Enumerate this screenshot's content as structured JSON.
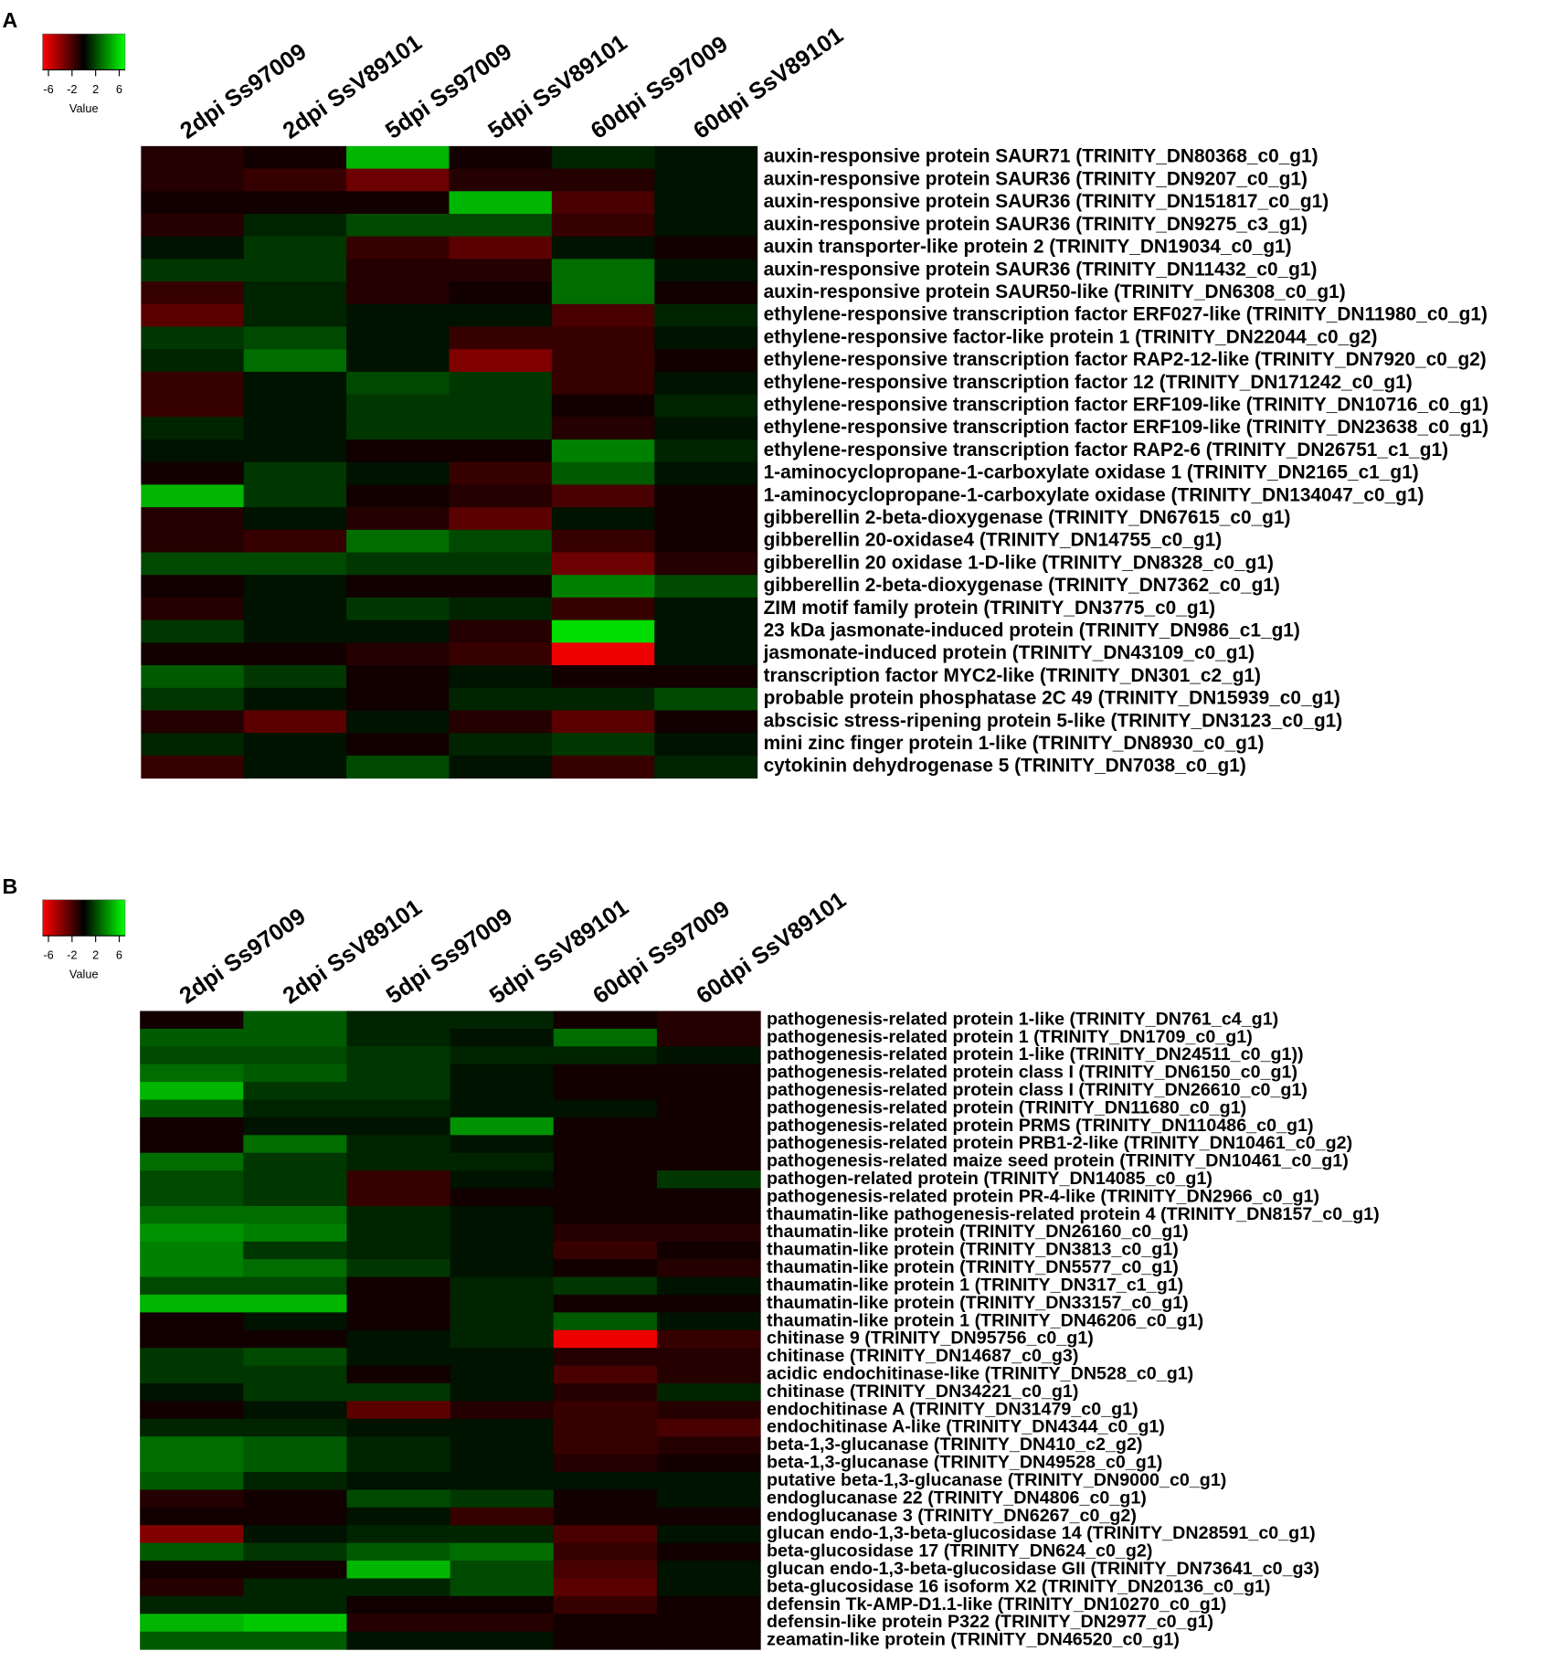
{
  "chart_data": [
    {
      "type": "heatmap",
      "panel_label": "A",
      "colorbar_label": "Value",
      "clim": [
        -7,
        7
      ],
      "cticks": [
        -6,
        -2,
        2,
        6
      ],
      "colors": {
        "low": "#ff0000",
        "mid": "#000000",
        "high": "#00ff00"
      },
      "columns": [
        "2dpi Ss97009",
        "2dpi SsV89101",
        "5dpi Ss97009",
        "5dpi SsV89101",
        "60dpi Ss97009",
        "60dpi SsV89101"
      ],
      "rows": [
        "auxin-responsive protein SAUR71 (TRINITY_DN80368_c0_g1)",
        "auxin-responsive protein SAUR36 (TRINITY_DN9207_c0_g1)",
        "auxin-responsive protein SAUR36 (TRINITY_DN151817_c0_g1)",
        "auxin-responsive protein SAUR36 (TRINITY_DN9275_c3_g1)",
        "auxin transporter-like protein 2 (TRINITY_DN19034_c0_g1)",
        "auxin-responsive protein SAUR36 (TRINITY_DN11432_c0_g1)",
        "auxin-responsive protein SAUR50-like (TRINITY_DN6308_c0_g1)",
        "ethylene-responsive transcription factor ERF027-like (TRINITY_DN11980_c0_g1)",
        "ethylene-responsive factor-like protein 1 (TRINITY_DN22044_c0_g2)",
        "ethylene-responsive transcription factor RAP2-12-like (TRINITY_DN7920_c0_g2)",
        "ethylene-responsive transcription factor 12 (TRINITY_DN171242_c0_g1)",
        "ethylene-responsive transcription factor ERF109-like (TRINITY_DN10716_c0_g1)",
        "ethylene-responsive transcription factor ERF109-like (TRINITY_DN23638_c0_g1)",
        "ethylene-responsive transcription factor RAP2-6 (TRINITY_DN26751_c1_g1)",
        "1-aminocyclopropane-1-carboxylate oxidase 1 (TRINITY_DN2165_c1_g1)",
        "1-aminocyclopropane-1-carboxylate oxidase (TRINITY_DN134047_c0_g1)",
        "gibberellin 2-beta-dioxygenase (TRINITY_DN67615_c0_g1)",
        "gibberellin 20-oxidase4 (TRINITY_DN14755_c0_g1)",
        "gibberellin 20 oxidase 1-D-like (TRINITY_DN8328_c0_g1)",
        "gibberellin 2-beta-dioxygenase (TRINITY_DN7362_c0_g1)",
        "ZIM motif family protein (TRINITY_DN3775_c0_g1)",
        "23 kDa jasmonate-induced protein (TRINITY_DN986_c1_g1)",
        "jasmonate-induced protein (TRINITY_DN43109_c0_g1)",
        "transcription factor MYC2-like (TRINITY_DN301_c2_g1)",
        "probable protein phosphatase 2C 49 (TRINITY_DN15939_c0_g1)",
        "abscisic stress-ripening protein 5-like (TRINITY_DN3123_c0_g1)",
        "mini zinc finger protein 1-like (TRINITY_DN8930_c0_g1)",
        "cytokinin dehydrogenase 5 (TRINITY_DN7038_c0_g1)"
      ],
      "values": [
        [
          -1,
          -0.5,
          5,
          -0.5,
          1,
          0.5
        ],
        [
          -1,
          -1.5,
          -3,
          -1,
          -1,
          0.5
        ],
        [
          -0.5,
          -0.5,
          -0.5,
          5,
          -2,
          0.5
        ],
        [
          -1,
          1,
          2,
          2,
          -1.5,
          0.5
        ],
        [
          0.5,
          1.5,
          -1.5,
          -2.5,
          0.5,
          -0.5
        ],
        [
          1.5,
          1.5,
          -1,
          -1,
          3,
          0.5
        ],
        [
          -1.5,
          1,
          -1,
          -0.5,
          3,
          -0.5
        ],
        [
          -2.5,
          1,
          0.5,
          0.5,
          -2,
          1
        ],
        [
          1.5,
          2,
          0.5,
          -1.5,
          -1.5,
          0.5
        ],
        [
          1,
          3,
          0.5,
          -3.5,
          -1.5,
          -0.5
        ],
        [
          -1.5,
          0.5,
          2,
          1.5,
          -1.5,
          0.5
        ],
        [
          -1.5,
          0.5,
          1.5,
          1.5,
          -0.5,
          1
        ],
        [
          1,
          0.5,
          1.5,
          1.5,
          -1,
          0.5
        ],
        [
          0.5,
          0.5,
          -0.5,
          -0.5,
          3.5,
          1
        ],
        [
          -0.5,
          1.5,
          0.5,
          -1.5,
          2.5,
          0.5
        ],
        [
          5,
          1.5,
          -0.5,
          -1,
          -2,
          -0.5
        ],
        [
          -1,
          0.5,
          -1,
          -2.5,
          0.5,
          -0.5
        ],
        [
          -1,
          -1.5,
          3,
          2,
          -1.5,
          -0.5
        ],
        [
          2,
          2,
          1.5,
          1.5,
          -3,
          -1
        ],
        [
          -0.5,
          0.5,
          -0.5,
          -0.5,
          3.5,
          2
        ],
        [
          -1,
          0.5,
          1.5,
          1,
          -1.5,
          0.5
        ],
        [
          1.5,
          0.5,
          0.5,
          -1,
          6,
          0.5
        ],
        [
          -0.5,
          -0.5,
          -1,
          -1.5,
          -6.5,
          0.5
        ],
        [
          2.5,
          1.5,
          -0.5,
          0.5,
          -0.5,
          -0.5
        ],
        [
          1.5,
          0.5,
          -0.5,
          1,
          1,
          2
        ],
        [
          -1,
          -2.5,
          0.5,
          -1,
          -2.5,
          -0.5
        ],
        [
          1,
          0.5,
          -0.5,
          1,
          1.5,
          0.5
        ],
        [
          -1.5,
          0.5,
          2,
          0.5,
          -1.5,
          1
        ]
      ]
    },
    {
      "type": "heatmap",
      "panel_label": "B",
      "colorbar_label": "Value",
      "clim": [
        -7,
        7
      ],
      "cticks": [
        -6,
        -2,
        2,
        6
      ],
      "colors": {
        "low": "#ff0000",
        "mid": "#000000",
        "high": "#00ff00"
      },
      "columns": [
        "2dpi Ss97009",
        "2dpi SsV89101",
        "5dpi Ss97009",
        "5dpi SsV89101",
        "60dpi Ss97009",
        "60dpi SsV89101"
      ],
      "rows": [
        "pathogenesis-related protein 1-like (TRINITY_DN761_c4_g1)",
        "pathogenesis-related protein 1 (TRINITY_DN1709_c0_g1)",
        "pathogenesis-related protein 1-like (TRINITY_DN24511_c0_g1))",
        "pathogenesis-related protein class I (TRINITY_DN6150_c0_g1)",
        "pathogenesis-related protein class I (TRINITY_DN26610_c0_g1)",
        "pathogenesis-related protein (TRINITY_DN11680_c0_g1)",
        "pathogenesis-related protein PRMS (TRINITY_DN110486_c0_g1)",
        "pathogenesis-related protein PRB1-2-like (TRINITY_DN10461_c0_g2)",
        "pathogenesis-related maize seed protein (TRINITY_DN10461_c0_g1)",
        "pathogen-related protein (TRINITY_DN14085_c0_g1)",
        "pathogenesis-related protein PR-4-like (TRINITY_DN2966_c0_g1)",
        "thaumatin-like pathogenesis-related protein 4 (TRINITY_DN8157_c0_g1)",
        "thaumatin-like protein (TRINITY_DN26160_c0_g1)",
        "thaumatin-like protein (TRINITY_DN3813_c0_g1)",
        "thaumatin-like protein (TRINITY_DN5577_c0_g1)",
        "thaumatin-like protein 1 (TRINITY_DN317_c1_g1)",
        "thaumatin-like protein (TRINITY_DN33157_c0_g1)",
        "thaumatin-like protein 1 (TRINITY_DN46206_c0_g1)",
        "chitinase 9 (TRINITY_DN95756_c0_g1)",
        "chitinase (TRINITY_DN14687_c0_g3)",
        "acidic endochitinase-like (TRINITY_DN528_c0_g1)",
        "chitinase (TRINITY_DN34221_c0_g1)",
        "endochitinase A (TRINITY_DN31479_c0_g1)",
        "endochitinase A-like (TRINITY_DN4344_c0_g1)",
        "beta-1,3-glucanase (TRINITY_DN410_c2_g2)",
        "beta-1,3-glucanase (TRINITY_DN49528_c0_g1)",
        "putative beta-1,3-glucanase (TRINITY_DN9000_c0_g1)",
        "endoglucanase 22 (TRINITY_DN4806_c0_g1)",
        "endoglucanase 3 (TRINITY_DN6267_c0_g2)",
        "glucan endo-1,3-beta-glucosidase 14 (TRINITY_DN28591_c0_g1)",
        "beta-glucosidase 17 (TRINITY_DN624_c0_g2)",
        "glucan endo-1,3-beta-glucosidase GII (TRINITY_DN73641_c0_g3)",
        "beta-glucosidase 16 isoform X2 (TRINITY_DN20136_c0_g1)",
        "defensin Tk-AMP-D1.1-like (TRINITY_DN10270_c0_g1)",
        "defensin-like protein P322 (TRINITY_DN2977_c0_g1)",
        "zeamatin-like protein (TRINITY_DN46520_c0_g1)"
      ],
      "values": [
        [
          -0.5,
          2.5,
          1,
          1,
          -0.5,
          -1
        ],
        [
          2.5,
          2.5,
          1,
          0.5,
          3,
          -1
        ],
        [
          2,
          2,
          1.5,
          1,
          1,
          0.5
        ],
        [
          3,
          2.5,
          1.5,
          0.5,
          -0.5,
          -0.5
        ],
        [
          5,
          1.5,
          1.5,
          0.5,
          -0.5,
          -0.5
        ],
        [
          2.5,
          1,
          1,
          0.5,
          0.5,
          -0.5
        ],
        [
          -0.5,
          0.5,
          0.5,
          4,
          -0.5,
          -0.5
        ],
        [
          -0.5,
          3,
          1,
          0.5,
          -0.5,
          -0.5
        ],
        [
          3,
          1.5,
          1,
          1,
          -0.5,
          -0.5
        ],
        [
          2,
          1.5,
          -1.5,
          0.5,
          -0.5,
          1.5
        ],
        [
          2,
          1.5,
          -1.5,
          -0.5,
          -0.5,
          -0.5
        ],
        [
          3,
          3,
          1,
          0.5,
          -0.5,
          -0.5
        ],
        [
          4,
          3.5,
          1,
          0.5,
          -1,
          -1
        ],
        [
          3.5,
          1.5,
          1,
          0.5,
          -1.5,
          -0.5
        ],
        [
          3.5,
          3,
          1.5,
          0.5,
          -0.5,
          -1
        ],
        [
          2,
          2,
          -0.5,
          1,
          1.5,
          0.5
        ],
        [
          5,
          5,
          -0.5,
          1,
          -0.5,
          -0.5
        ],
        [
          -0.5,
          0.5,
          -0.5,
          1,
          2.5,
          0.5
        ],
        [
          -0.5,
          -0.5,
          0.5,
          1,
          -6.5,
          -1.5
        ],
        [
          1.5,
          2,
          0.5,
          0.5,
          -1,
          -1
        ],
        [
          1.5,
          1.5,
          -0.5,
          0.5,
          -2,
          -1
        ],
        [
          0.5,
          1.5,
          1.5,
          0.5,
          -1,
          1
        ],
        [
          -0.5,
          0.5,
          -2.5,
          -1,
          -1.5,
          -1
        ],
        [
          1,
          1,
          0.5,
          0.5,
          -1.5,
          -2
        ],
        [
          3,
          2.5,
          1,
          0.5,
          -1.5,
          -1
        ],
        [
          3,
          2.5,
          1,
          0.5,
          -1,
          -0.5
        ],
        [
          2.5,
          1,
          0.5,
          0.5,
          0.5,
          0.5
        ],
        [
          -1,
          -0.5,
          2,
          1.5,
          -0.5,
          0.5
        ],
        [
          -0.5,
          -0.5,
          0.5,
          -1.5,
          -0.5,
          -0.5
        ],
        [
          -3.5,
          0.5,
          1,
          1,
          -2,
          0.5
        ],
        [
          2.5,
          1.5,
          2.5,
          3,
          -1.5,
          -0.5
        ],
        [
          -0.5,
          -0.5,
          5,
          2,
          -2,
          0.5
        ],
        [
          -1,
          1,
          1,
          2,
          -2.5,
          0.5
        ],
        [
          1,
          1,
          -0.5,
          -0.5,
          -1.5,
          -0.5
        ],
        [
          5,
          5.5,
          -1,
          -1,
          -0.5,
          -0.5
        ],
        [
          2.5,
          2.5,
          0.5,
          0.5,
          -0.5,
          -0.5
        ]
      ]
    }
  ]
}
